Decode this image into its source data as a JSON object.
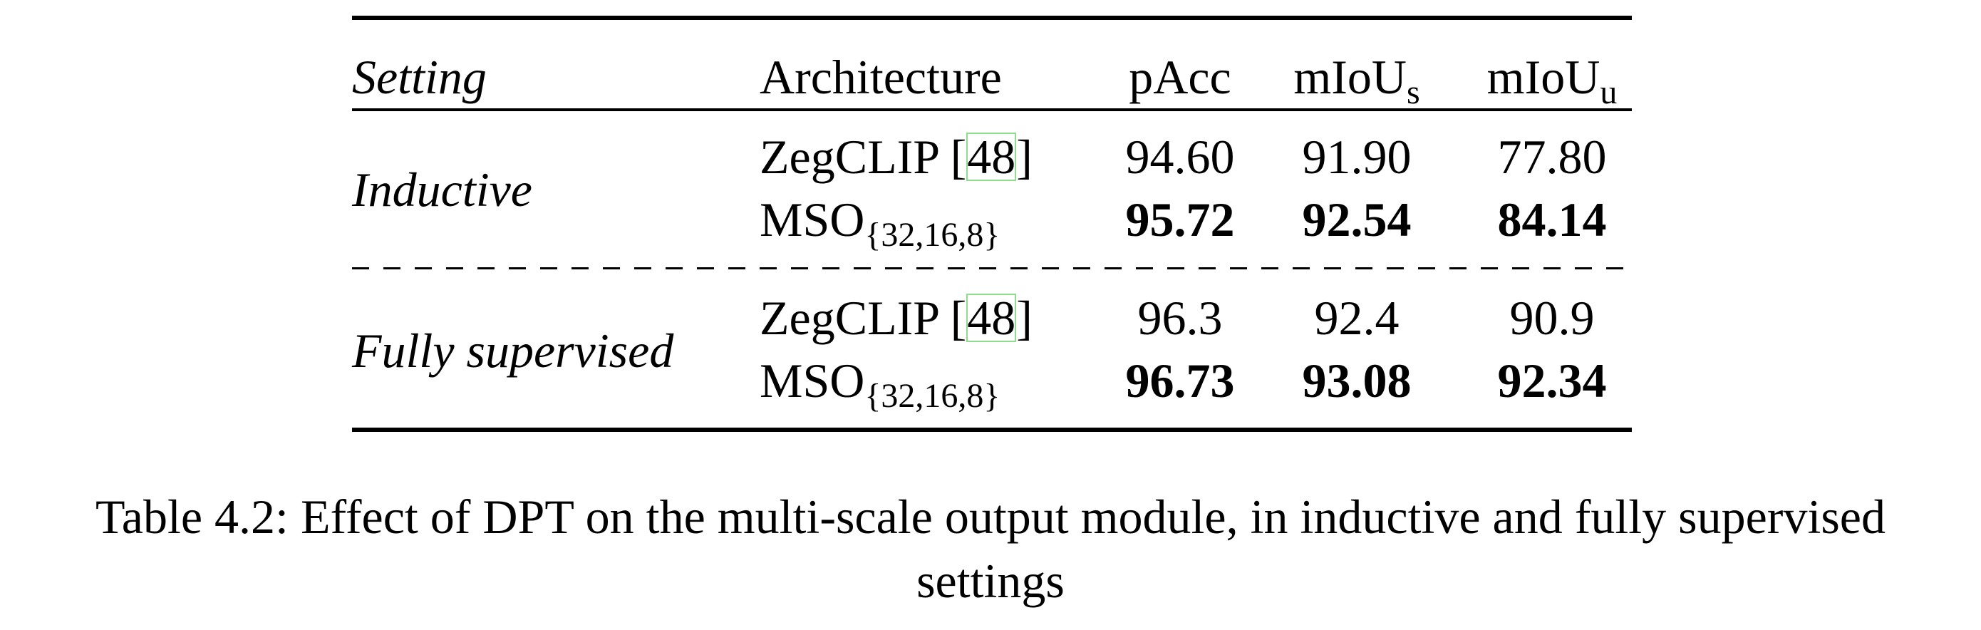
{
  "table": {
    "headers": {
      "setting": "Setting",
      "architecture": "Architecture",
      "pacc": "pAcc",
      "mious_main": "mIoU",
      "mious_sub": "s",
      "miouu_main": "mIoU",
      "miouu_sub": "u"
    },
    "groups": [
      {
        "setting": "Inductive",
        "rows": [
          {
            "arch": "ZegCLIP",
            "ref": "48",
            "pacc": "94.60",
            "mious": "91.90",
            "miouu": "77.80"
          },
          {
            "arch": "MSO",
            "arch_sub": "{32,16,8}",
            "pacc": "95.72",
            "mious": "92.54",
            "miouu": "84.14"
          }
        ]
      },
      {
        "setting": "Fully supervised",
        "rows": [
          {
            "arch": "ZegCLIP",
            "ref": "48",
            "pacc": "96.3",
            "mious": "92.4",
            "miouu": "90.9"
          },
          {
            "arch": "MSO",
            "arch_sub": "{32,16,8}",
            "pacc": "96.73",
            "mious": "93.08",
            "miouu": "92.34"
          }
        ]
      }
    ]
  },
  "caption": {
    "line1": "Table 4.2: Effect of DPT on the multi-scale output module, in inductive and fully supervised",
    "line2": "settings"
  }
}
